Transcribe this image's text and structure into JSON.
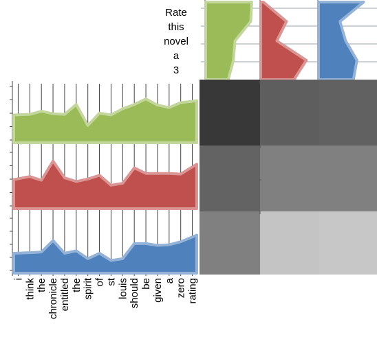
{
  "chart_data": {
    "type": "area",
    "title_words": [
      "Rate",
      "this",
      "novel",
      "a",
      "3"
    ],
    "words": [
      "i",
      "think",
      "the",
      "chronicle",
      "entitled",
      "the",
      "spirit",
      "of",
      "st",
      "louis",
      "should",
      "be",
      "given",
      "a",
      "zero",
      "rating"
    ],
    "series": [
      {
        "color": "#9bbb59",
        "stroke": "#c3d69b",
        "values": [
          0.45,
          0.46,
          0.51,
          0.47,
          0.46,
          0.62,
          0.28,
          0.48,
          0.45,
          0.55,
          0.62,
          0.71,
          0.61,
          0.57,
          0.65,
          0.68
        ]
      },
      {
        "color": "#c0504d",
        "stroke": "#d99694",
        "values": [
          0.47,
          0.52,
          0.46,
          0.77,
          0.5,
          0.44,
          0.48,
          0.54,
          0.38,
          0.41,
          0.66,
          0.57,
          0.57,
          0.57,
          0.56,
          0.72
        ]
      },
      {
        "color": "#4f81bd",
        "stroke": "#95b3d7",
        "values": [
          0.33,
          0.34,
          0.35,
          0.54,
          0.33,
          0.37,
          0.24,
          0.33,
          0.21,
          0.24,
          0.49,
          0.49,
          0.46,
          0.47,
          0.52,
          0.63
        ]
      }
    ],
    "title_profiles": [
      [
        0.88,
        0.86,
        0.56,
        0.53,
        0.43
      ],
      [
        0.05,
        0.48,
        0.3,
        0.85,
        0.62
      ],
      [
        0.8,
        0.38,
        0.48,
        0.68,
        0.62
      ]
    ],
    "heatmap": [
      [
        0.22,
        0.37,
        0.38
      ],
      [
        0.39,
        0.5,
        0.5
      ],
      [
        0.5,
        0.77,
        0.78
      ]
    ]
  }
}
